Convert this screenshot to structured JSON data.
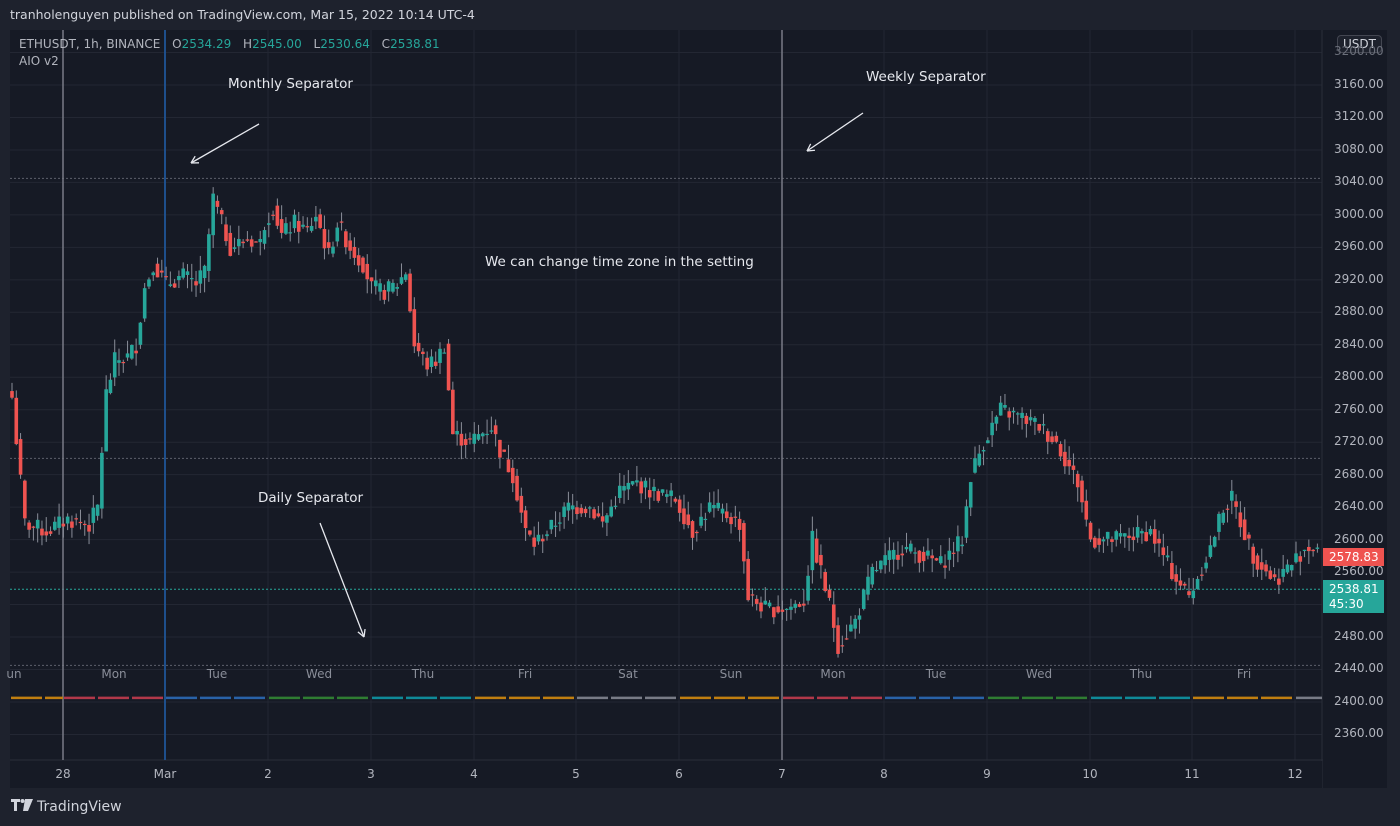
{
  "header": {
    "published": "tranholenguyen published on TradingView.com, Mar 15, 2022 10:14 UTC-4"
  },
  "legend": {
    "symbol": "ETHUSDT, 1h, BINANCE",
    "open_label": "O",
    "open": "2534.29",
    "high_label": "H",
    "high": "2545.00",
    "low_label": "L",
    "low": "2530.64",
    "close_label": "C",
    "close": "2538.81",
    "indicator": "AIO v2"
  },
  "price_axis": {
    "currency": "USDT",
    "labels": [
      "3160.00",
      "3120.00",
      "3080.00",
      "3040.00",
      "3000.00",
      "2960.00",
      "2920.00",
      "2880.00",
      "2840.00",
      "2800.00",
      "2760.00",
      "2720.00",
      "2680.00",
      "2640.00",
      "2600.00",
      "2560.00",
      "2480.00",
      "2440.00",
      "2400.00",
      "2360.00"
    ],
    "last_high_tag": "2578.83",
    "current_price": "2538.81",
    "countdown": "45:30"
  },
  "annotations": {
    "monthly": "Monthly Separator",
    "weekly": "Weekly Separator",
    "daily": "Daily Separator",
    "timezone": "We can change time zone in the setting"
  },
  "weekday_labels": [
    "un",
    "Mon",
    "Tue",
    "Wed",
    "Thu",
    "Fri",
    "Sat",
    "Sun",
    "Mon",
    "Tue",
    "Wed",
    "Thu",
    "Fri"
  ],
  "date_labels": [
    "28",
    "Mar",
    "2",
    "3",
    "4",
    "5",
    "6",
    "7",
    "8",
    "9",
    "10",
    "11",
    "12"
  ],
  "footer": {
    "brand": "TradingView",
    "logo": "TV-logo-icon"
  },
  "colors": {
    "up": "#26a69a",
    "down": "#ef5350",
    "background": "#161a25",
    "grid": "#232733",
    "weekly_sep": "#787b86",
    "monthly_sep": "#2962ff",
    "day_bands": [
      "#c17f10",
      "#b2384a",
      "#2962a8",
      "#2f7d32",
      "#0f8a99",
      "#c17f10",
      "#787b86"
    ]
  },
  "chart_data": {
    "type": "candlestick",
    "title": "ETHUSDT, 1h, BINANCE",
    "xlabel": "",
    "ylabel": "USDT",
    "ylim": [
      2330,
      3210
    ],
    "x_ticks": [
      "28",
      "Mar",
      "2",
      "3",
      "4",
      "5",
      "6",
      "7",
      "8",
      "9",
      "10",
      "11",
      "12"
    ],
    "horizontal_levels": [
      3045,
      2700,
      2538.81,
      2445
    ],
    "separators": {
      "weekly": [
        "Feb 28",
        "Mar 7"
      ],
      "monthly": [
        "Mar 1"
      ]
    },
    "path": [
      [
        0,
        2775
      ],
      [
        3,
        2620
      ],
      [
        8,
        2610
      ],
      [
        13,
        2625
      ],
      [
        18,
        2618
      ],
      [
        20,
        2640
      ],
      [
        22,
        2780
      ],
      [
        24,
        2820
      ],
      [
        27,
        2825
      ],
      [
        29,
        2840
      ],
      [
        31,
        2910
      ],
      [
        33,
        2940
      ],
      [
        36,
        2915
      ],
      [
        40,
        2925
      ],
      [
        43,
        2915
      ],
      [
        45,
        2930
      ],
      [
        47,
        3020
      ],
      [
        49,
        2990
      ],
      [
        51,
        2960
      ],
      [
        55,
        2970
      ],
      [
        58,
        2965
      ],
      [
        59,
        2990
      ],
      [
        61,
        3010
      ],
      [
        63,
        2975
      ],
      [
        66,
        2990
      ],
      [
        69,
        2980
      ],
      [
        71,
        3000
      ],
      [
        74,
        2950
      ],
      [
        76,
        2990
      ],
      [
        79,
        2960
      ],
      [
        82,
        2940
      ],
      [
        84,
        2910
      ],
      [
        87,
        2905
      ],
      [
        90,
        2915
      ],
      [
        92,
        2930
      ],
      [
        94,
        2840
      ],
      [
        97,
        2815
      ],
      [
        99,
        2820
      ],
      [
        101,
        2840
      ],
      [
        103,
        2730
      ],
      [
        107,
        2720
      ],
      [
        112,
        2740
      ],
      [
        114,
        2710
      ],
      [
        117,
        2680
      ],
      [
        120,
        2610
      ],
      [
        122,
        2595
      ],
      [
        126,
        2615
      ],
      [
        130,
        2640
      ],
      [
        135,
        2640
      ],
      [
        138,
        2620
      ],
      [
        142,
        2660
      ],
      [
        146,
        2670
      ],
      [
        149,
        2660
      ],
      [
        155,
        2650
      ],
      [
        159,
        2610
      ],
      [
        163,
        2640
      ],
      [
        167,
        2630
      ],
      [
        170,
        2620
      ],
      [
        172,
        2530
      ],
      [
        176,
        2515
      ],
      [
        181,
        2515
      ],
      [
        185,
        2525
      ],
      [
        187,
        2600
      ],
      [
        191,
        2520
      ],
      [
        193,
        2470
      ],
      [
        197,
        2500
      ],
      [
        201,
        2560
      ],
      [
        208,
        2590
      ],
      [
        213,
        2580
      ],
      [
        217,
        2570
      ],
      [
        222,
        2600
      ],
      [
        224,
        2680
      ],
      [
        227,
        2720
      ],
      [
        231,
        2760
      ],
      [
        236,
        2750
      ],
      [
        240,
        2740
      ],
      [
        244,
        2720
      ],
      [
        246,
        2700
      ],
      [
        249,
        2670
      ],
      [
        252,
        2600
      ],
      [
        257,
        2600
      ],
      [
        262,
        2605
      ],
      [
        266,
        2610
      ],
      [
        271,
        2560
      ],
      [
        275,
        2530
      ],
      [
        280,
        2590
      ],
      [
        283,
        2640
      ],
      [
        285,
        2650
      ],
      [
        290,
        2580
      ],
      [
        295,
        2550
      ],
      [
        299,
        2570
      ],
      [
        302,
        2590
      ],
      [
        307,
        2590
      ],
      [
        310,
        2585
      ]
    ]
  }
}
